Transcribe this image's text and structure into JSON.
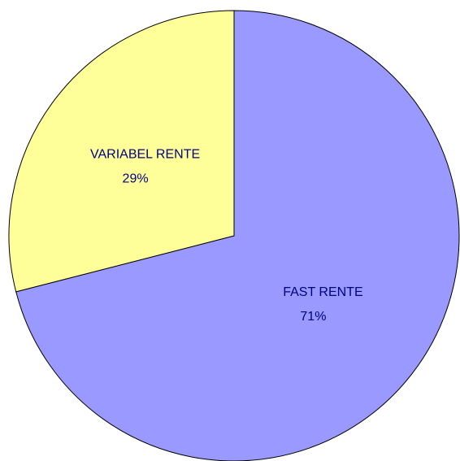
{
  "chart_data": {
    "type": "pie",
    "categories": [
      "FAST RENTE",
      "VARIABEL RENTE"
    ],
    "values": [
      71,
      29
    ],
    "value_labels": [
      "71%",
      "29%"
    ],
    "colors": [
      "#9999ff",
      "#ffff99"
    ],
    "start_angle": 0,
    "direction": "clockwise"
  }
}
